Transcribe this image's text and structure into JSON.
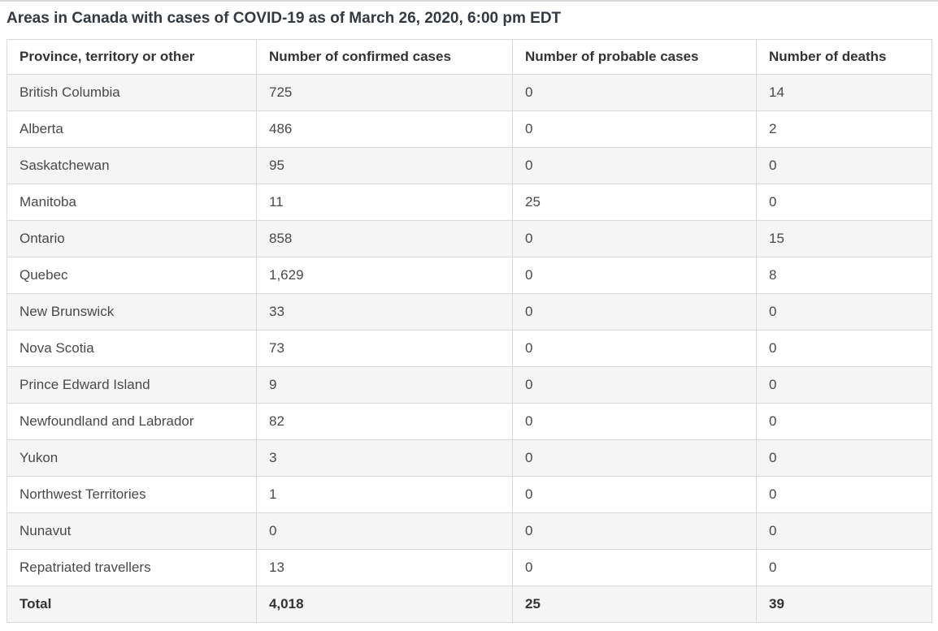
{
  "title": "Areas in Canada with cases of COVID-19 as of March 26, 2020, 6:00 pm EDT",
  "colors": {
    "stripe": "#f5f5f5",
    "border": "#d9d9d9",
    "heading_text": "#333333",
    "cell_text": "#47494c"
  },
  "chart_data": {
    "type": "table",
    "title": "Areas in Canada with cases of COVID-19 as of March 26, 2020, 6:00 pm EDT",
    "columns": [
      "Province, territory or other",
      "Number of confirmed cases",
      "Number of probable cases",
      "Number of deaths"
    ],
    "rows": [
      [
        "British Columbia",
        "725",
        "0",
        "14"
      ],
      [
        "Alberta",
        "486",
        "0",
        "2"
      ],
      [
        "Saskatchewan",
        "95",
        "0",
        "0"
      ],
      [
        "Manitoba",
        "11",
        "25",
        "0"
      ],
      [
        "Ontario",
        "858",
        "0",
        "15"
      ],
      [
        "Quebec",
        "1,629",
        "0",
        "8"
      ],
      [
        "New Brunswick",
        "33",
        "0",
        "0"
      ],
      [
        "Nova Scotia",
        "73",
        "0",
        "0"
      ],
      [
        "Prince Edward Island",
        "9",
        "0",
        "0"
      ],
      [
        "Newfoundland and Labrador",
        "82",
        "0",
        "0"
      ],
      [
        "Yukon",
        "3",
        "0",
        "0"
      ],
      [
        "Northwest Territories",
        "1",
        "0",
        "0"
      ],
      [
        "Nunavut",
        "0",
        "0",
        "0"
      ],
      [
        "Repatriated travellers",
        "13",
        "0",
        "0"
      ]
    ],
    "total_row": [
      "Total",
      "4,018",
      "25",
      "39"
    ],
    "layout": {
      "zebra_striping": true,
      "grid": true,
      "header_position": "top"
    }
  }
}
